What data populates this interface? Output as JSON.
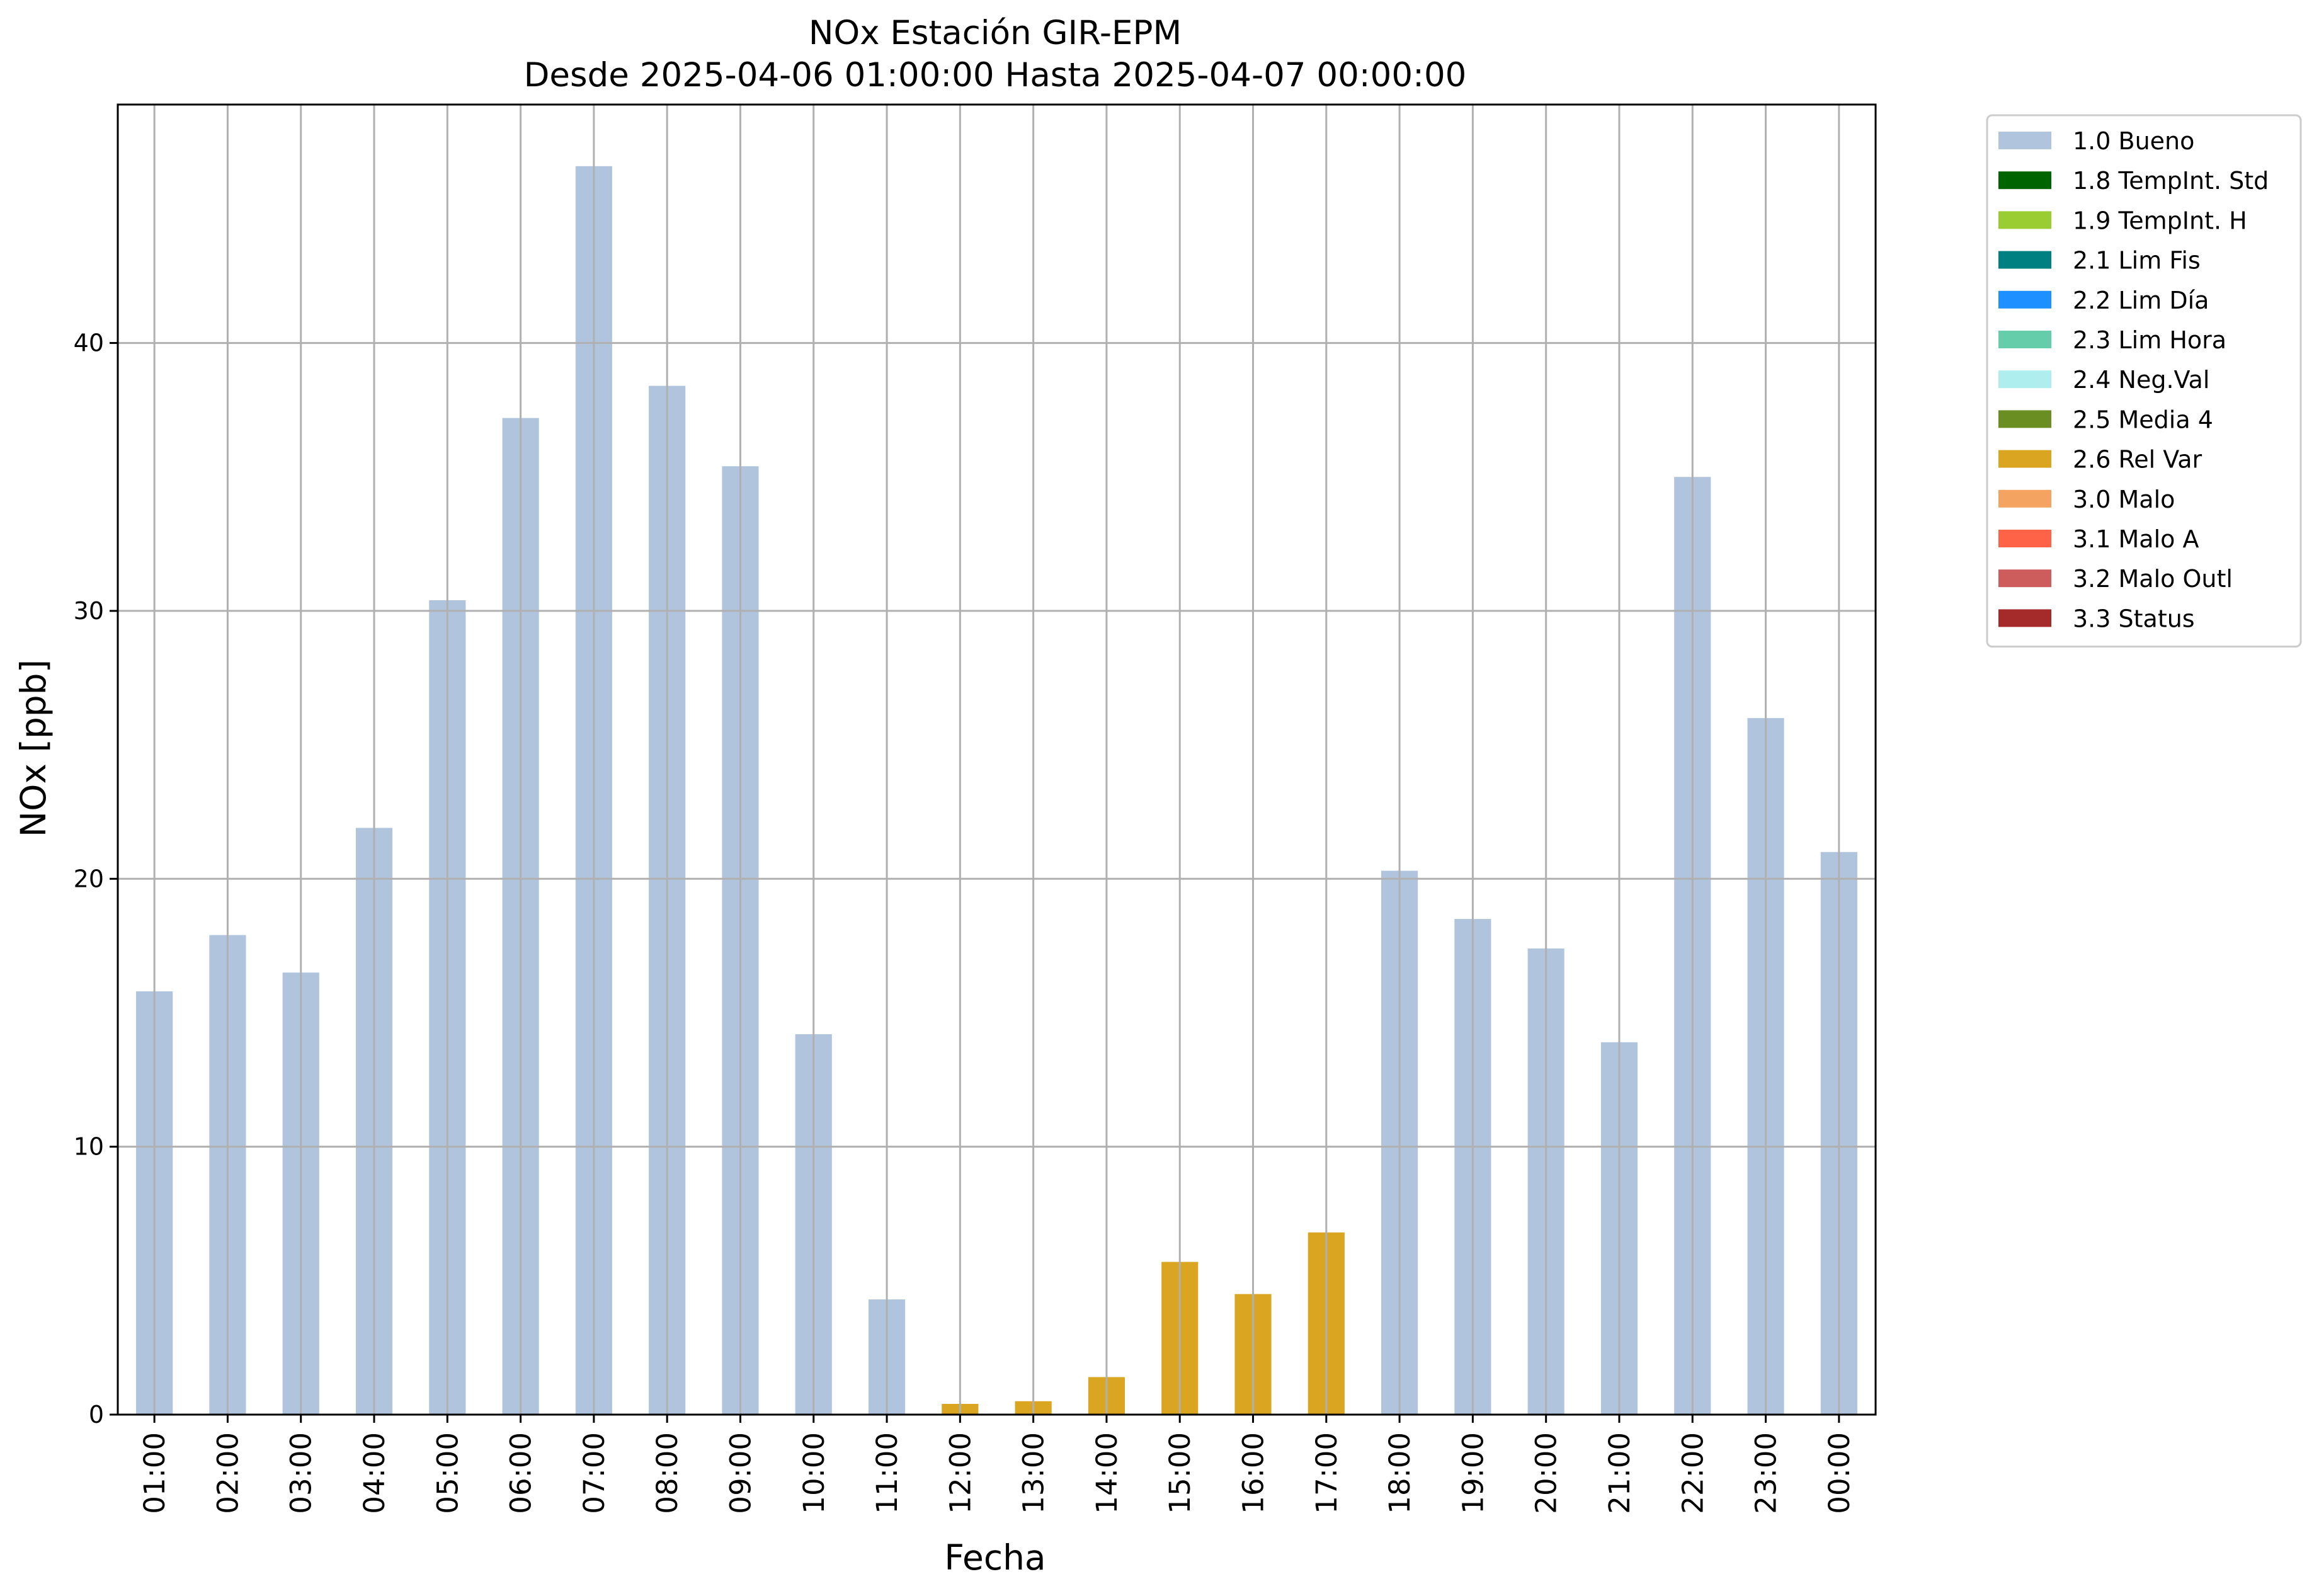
{
  "chart_data": {
    "type": "bar",
    "title_line1": "NOx Estación GIR-EPM",
    "title_line2": "Desde 2025-04-06 01:00:00 Hasta 2025-04-07 00:00:00",
    "xlabel": "Fecha",
    "ylabel": "NOx [ppb]",
    "ylim": [
      0,
      48.9
    ],
    "yticks": [
      0,
      10,
      20,
      30,
      40
    ],
    "grid": true,
    "legend_position": "outside-right-top",
    "categories": [
      "01:00",
      "02:00",
      "03:00",
      "04:00",
      "05:00",
      "06:00",
      "07:00",
      "08:00",
      "09:00",
      "10:00",
      "11:00",
      "12:00",
      "13:00",
      "14:00",
      "15:00",
      "16:00",
      "17:00",
      "18:00",
      "19:00",
      "20:00",
      "21:00",
      "22:00",
      "23:00",
      "00:00"
    ],
    "values": [
      15.8,
      17.9,
      16.5,
      21.9,
      30.4,
      37.2,
      46.6,
      38.4,
      35.4,
      14.2,
      4.3,
      0.4,
      0.5,
      1.4,
      5.7,
      4.5,
      6.8,
      20.3,
      18.5,
      17.4,
      13.9,
      35.0,
      26.0,
      21.0
    ],
    "flags": [
      "1.0 Bueno",
      "1.0 Bueno",
      "1.0 Bueno",
      "1.0 Bueno",
      "1.0 Bueno",
      "1.0 Bueno",
      "1.0 Bueno",
      "1.0 Bueno",
      "1.0 Bueno",
      "1.0 Bueno",
      "1.0 Bueno",
      "2.6 Rel Var",
      "2.6 Rel Var",
      "2.6 Rel Var",
      "2.6 Rel Var",
      "2.6 Rel Var",
      "2.6 Rel Var",
      "1.0 Bueno",
      "1.0 Bueno",
      "1.0 Bueno",
      "1.0 Bueno",
      "1.0 Bueno",
      "1.0 Bueno",
      "1.0 Bueno"
    ],
    "legend": [
      {
        "label": "1.0 Bueno",
        "color": "#b0c4de"
      },
      {
        "label": "1.8 TempInt. Std",
        "color": "#006400"
      },
      {
        "label": "1.9 TempInt. H",
        "color": "#9acd32"
      },
      {
        "label": "2.1 Lim Fis",
        "color": "#008080"
      },
      {
        "label": "2.2 Lim Día",
        "color": "#1e90ff"
      },
      {
        "label": "2.3 Lim Hora",
        "color": "#66cdaa"
      },
      {
        "label": "2.4 Neg.Val",
        "color": "#afeeee"
      },
      {
        "label": "2.5 Media 4",
        "color": "#6b8e23"
      },
      {
        "label": "2.6 Rel Var",
        "color": "#daa520"
      },
      {
        "label": "3.0 Malo",
        "color": "#f4a460"
      },
      {
        "label": "3.1 Malo A",
        "color": "#ff6347"
      },
      {
        "label": "3.2 Malo Outl",
        "color": "#cd5c5c"
      },
      {
        "label": "3.3 Status",
        "color": "#a52a2a"
      }
    ]
  }
}
